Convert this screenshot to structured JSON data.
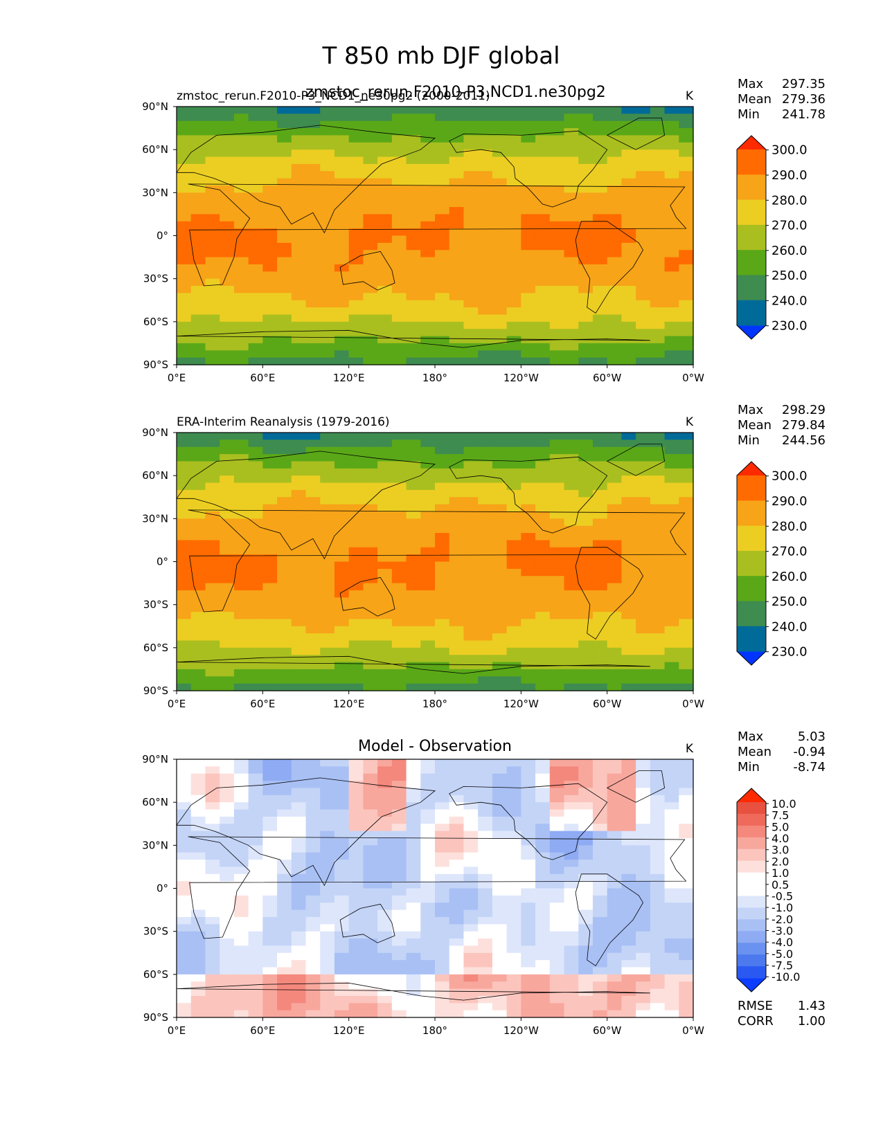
{
  "figure": {
    "title": "T 850 mb DJF global"
  },
  "colors": {
    "main": [
      "#0035ff",
      "#006b99",
      "#3e8c4f",
      "#5aa818",
      "#a9bf1f",
      "#ecce22",
      "#f7a418",
      "#ff6b00",
      "#ff2a00"
    ],
    "diff": [
      "#0d3dff",
      "#2a59f2",
      "#4c79ee",
      "#6a92f0",
      "#8eabf3",
      "#a9c0f5",
      "#c4d4f7",
      "#dde6fb",
      "#ffffff",
      "#ffffff",
      "#fde0dc",
      "#fbc5bd",
      "#f8a79d",
      "#f4887c",
      "#ef6a5b",
      "#e8503f",
      "#ff2a00"
    ],
    "land": "#000000"
  },
  "chart_data": [
    {
      "type": "heatmap",
      "panel": "test",
      "title": "zmstoc_rerun.F2010-P3_NCD1_ne30pg2 (2000-2011)",
      "title_center": "zmstoc_rerun.F2010-P3.NCD1.ne30pg2",
      "units": "K",
      "stats": {
        "max": "297.35",
        "mean": "279.36",
        "min": "241.78"
      },
      "xticks": [
        "0°E",
        "60°E",
        "120°E",
        "180°",
        "120°W",
        "60°W",
        "0°W"
      ],
      "yticks": [
        "90°N",
        "60°N",
        "30°N",
        "0°",
        "30°S",
        "60°S",
        "90°S"
      ],
      "xlim": [
        0,
        360
      ],
      "ylim": [
        -90,
        90
      ],
      "levels": [
        "300.0",
        "290.0",
        "280.0",
        "270.0",
        "260.0",
        "250.0",
        "240.0",
        "230.0"
      ]
    },
    {
      "type": "heatmap",
      "panel": "reference",
      "title": "ERA-Interim Reanalysis (1979-2016)",
      "units": "K",
      "stats": {
        "max": "298.29",
        "mean": "279.84",
        "min": "244.56"
      },
      "xticks": [
        "0°E",
        "60°E",
        "120°E",
        "180°",
        "120°W",
        "60°W",
        "0°W"
      ],
      "yticks": [
        "90°N",
        "60°N",
        "30°N",
        "0°",
        "30°S",
        "60°S",
        "90°S"
      ],
      "xlim": [
        0,
        360
      ],
      "ylim": [
        -90,
        90
      ],
      "levels": [
        "300.0",
        "290.0",
        "280.0",
        "270.0",
        "260.0",
        "250.0",
        "240.0",
        "230.0"
      ]
    },
    {
      "type": "heatmap",
      "panel": "difference",
      "title": "Model - Observation",
      "units": "K",
      "stats": {
        "max": "5.03",
        "mean": "-0.94",
        "min": "-8.74"
      },
      "metrics": {
        "rmse_label": "RMSE",
        "rmse": "1.43",
        "corr_label": "CORR",
        "corr": "1.00"
      },
      "xticks": [
        "0°E",
        "60°E",
        "120°E",
        "180°",
        "120°W",
        "60°W",
        "0°W"
      ],
      "yticks": [
        "90°N",
        "60°N",
        "30°N",
        "0°",
        "30°S",
        "60°S",
        "90°S"
      ],
      "xlim": [
        0,
        360
      ],
      "ylim": [
        -90,
        90
      ],
      "levels": [
        "10.0",
        "7.5",
        "5.0",
        "4.0",
        "3.0",
        "2.0",
        "1.0",
        "0.5",
        "-0.5",
        "-1.0",
        "-2.0",
        "-3.0",
        "-4.0",
        "-5.0",
        "-7.5",
        "-10.0"
      ]
    }
  ]
}
